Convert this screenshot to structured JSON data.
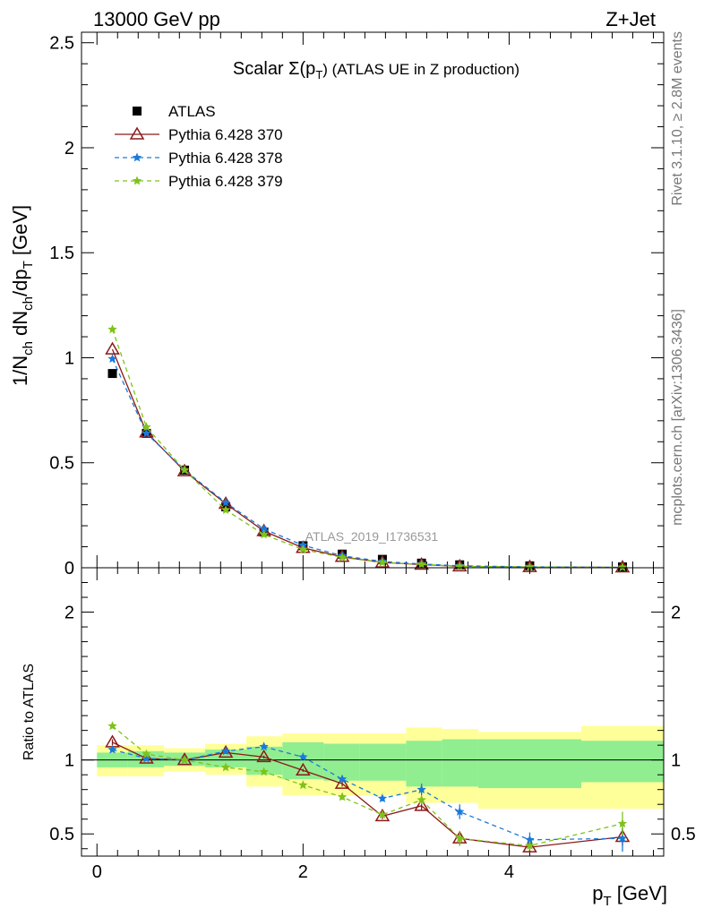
{
  "header": {
    "left": "13000 GeV pp",
    "right": "Z+Jet"
  },
  "side_labels": {
    "rivet": "Rivet 3.1.10, ≥ 2.8M events",
    "mcplots": "mcplots.cern.ch [arXiv:1306.3436]"
  },
  "chart_data": [
    {
      "type": "line",
      "title": "Scalar Σ(pT) (ATLAS UE in Z production)",
      "title_parts": {
        "prefix": "Scalar Σ(p",
        "sub": "T",
        "suffix": ") (ATLAS UE in Z production)"
      },
      "ylabel": "1/N_ch dN_ch/dp_T [GeV]",
      "watermark": "ATLAS_2019_I1736531",
      "xlim": [
        -0.15,
        5.5
      ],
      "ylim": [
        0,
        2.55
      ],
      "yticks": [
        0,
        0.5,
        1,
        1.5,
        2,
        2.5
      ],
      "ytick_labels": [
        "0",
        "0.5",
        "1",
        "1.5",
        "2",
        "2.5"
      ],
      "legend_position": "top-left",
      "x": [
        0.15,
        0.48,
        0.85,
        1.25,
        1.62,
        2.0,
        2.38,
        2.77,
        3.15,
        3.52,
        4.2,
        5.1
      ],
      "series": [
        {
          "name": "ATLAS",
          "color": "#000000",
          "marker": "square",
          "style": "none",
          "values": [
            0.925,
            0.64,
            0.465,
            0.29,
            0.17,
            0.105,
            0.065,
            0.04,
            0.022,
            0.014,
            0.009,
            0.004
          ]
        },
        {
          "name": "Pythia 6.428 370",
          "color": "#8b1a1a",
          "marker": "triangle",
          "style": "solid",
          "values": [
            1.04,
            0.645,
            0.46,
            0.305,
            0.175,
            0.095,
            0.052,
            0.025,
            0.015,
            0.0067,
            0.0037,
            0.0019
          ]
        },
        {
          "name": "Pythia 6.428 378",
          "color": "#1a7ad9",
          "marker": "star",
          "style": "dashed",
          "values": [
            0.995,
            0.64,
            0.465,
            0.31,
            0.185,
            0.107,
            0.057,
            0.03,
            0.018,
            0.0093,
            0.0042,
            0.0019
          ]
        },
        {
          "name": "Pythia 6.428 379",
          "color": "#7fc21a",
          "marker": "star",
          "style": "dashed",
          "values": [
            1.135,
            0.67,
            0.465,
            0.275,
            0.158,
            0.087,
            0.049,
            0.025,
            0.016,
            0.0066,
            0.0038,
            0.0023
          ]
        }
      ]
    },
    {
      "type": "line",
      "ylabel": "Ratio to ATLAS",
      "xlabel": "p_T [GeV]",
      "xlim": [
        -0.15,
        5.5
      ],
      "ylim": [
        0.35,
        2.3
      ],
      "xticks": [
        0,
        2,
        4
      ],
      "xtick_labels": [
        "0",
        "2",
        "4"
      ],
      "yticks": [
        0.5,
        1,
        2
      ],
      "ytick_labels": [
        "0.5",
        "1",
        "2"
      ],
      "reference_line": 1,
      "bin_edges": [
        0.0,
        0.3,
        0.65,
        1.05,
        1.45,
        1.8,
        2.2,
        2.55,
        3.0,
        3.35,
        3.7,
        4.7,
        5.5
      ],
      "band_inner": {
        "color": "#90ee90",
        "lower": [
          0.95,
          0.95,
          0.96,
          0.95,
          0.9,
          0.87,
          0.86,
          0.86,
          0.82,
          0.82,
          0.81,
          0.85
        ],
        "upper": [
          1.05,
          1.06,
          1.05,
          1.07,
          1.09,
          1.12,
          1.11,
          1.11,
          1.13,
          1.14,
          1.14,
          1.13
        ]
      },
      "band_outer": {
        "color": "#ffff99",
        "lower": [
          0.89,
          0.89,
          0.92,
          0.9,
          0.82,
          0.76,
          0.76,
          0.76,
          0.71,
          0.71,
          0.67,
          0.67
        ],
        "upper": [
          1.1,
          1.1,
          1.08,
          1.11,
          1.16,
          1.18,
          1.18,
          1.18,
          1.22,
          1.21,
          1.19,
          1.23
        ]
      },
      "x": [
        0.15,
        0.48,
        0.85,
        1.25,
        1.62,
        2.0,
        2.38,
        2.77,
        3.15,
        3.52,
        4.2,
        5.1
      ],
      "series": [
        {
          "name": "Pythia 6.428 370",
          "color": "#8b1a1a",
          "marker": "triangle",
          "style": "solid",
          "values": [
            1.12,
            1.01,
            1.0,
            1.05,
            1.02,
            0.93,
            0.84,
            0.62,
            0.69,
            0.47,
            0.41,
            0.48
          ],
          "errors": [
            0.02,
            0.01,
            0.01,
            0.01,
            0.01,
            0.01,
            0.02,
            0.02,
            0.03,
            0.05,
            0.03,
            0.06
          ]
        },
        {
          "name": "Pythia 6.428 378",
          "color": "#1a7ad9",
          "marker": "star",
          "style": "dashed",
          "values": [
            1.07,
            1.01,
            1.0,
            1.06,
            1.09,
            1.02,
            0.87,
            0.74,
            0.8,
            0.65,
            0.46,
            0.47
          ],
          "errors": [
            0.01,
            0.01,
            0.01,
            0.01,
            0.01,
            0.01,
            0.02,
            0.02,
            0.04,
            0.05,
            0.05,
            0.09
          ]
        },
        {
          "name": "Pythia 6.428 379",
          "color": "#7fc21a",
          "marker": "star",
          "style": "dashed",
          "values": [
            1.23,
            1.04,
            1.0,
            0.95,
            0.92,
            0.83,
            0.75,
            0.63,
            0.73,
            0.47,
            0.42,
            0.57
          ],
          "errors": [
            0.01,
            0.01,
            0.01,
            0.01,
            0.01,
            0.01,
            0.02,
            0.02,
            0.03,
            0.05,
            0.03,
            0.08
          ]
        }
      ]
    }
  ]
}
